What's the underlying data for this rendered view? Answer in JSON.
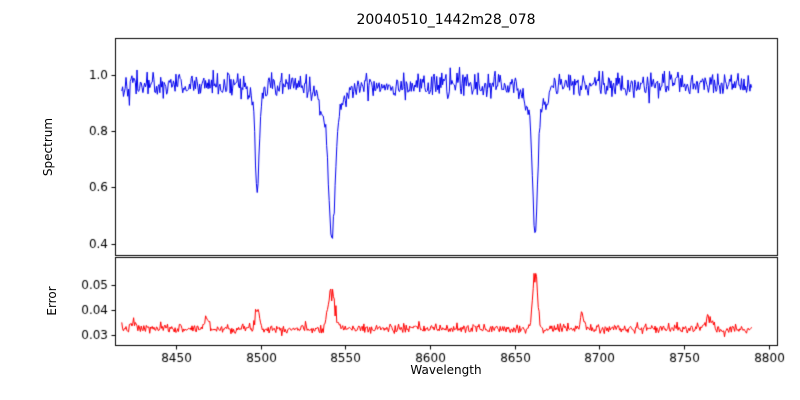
{
  "figure": {
    "background": "#ffffff"
  },
  "chart_data": [
    {
      "type": "line",
      "panel": "spectrum",
      "title": "20040510_1442m28_078",
      "xlabel": "Wavelength",
      "ylabel": "Spectrum",
      "color": "#0000ee",
      "xlim": [
        8414,
        8805
      ],
      "ylim": [
        0.36,
        1.13
      ],
      "yticks": {
        "values": [
          0.4,
          0.6,
          0.8,
          1.0
        ],
        "labels": [
          "0.4",
          "0.6",
          "0.8",
          "1.0"
        ]
      },
      "x_sampling": {
        "start": 8418,
        "end": 8790,
        "step": 0.5
      },
      "synthesis": {
        "seed": 42,
        "baseline": 0.963,
        "noise_sigma": 0.022,
        "absorption_lines": [
          {
            "center": 8498.0,
            "core_depth": 0.33,
            "core_sigma": 1.1,
            "wing_depth": 0.06,
            "wing_sigma": 3.5
          },
          {
            "center": 8542.1,
            "core_depth": 0.42,
            "core_sigma": 1.7,
            "wing_depth": 0.13,
            "wing_sigma": 6.0
          },
          {
            "center": 8662.1,
            "core_depth": 0.4,
            "core_sigma": 1.4,
            "wing_depth": 0.12,
            "wing_sigma": 5.0
          }
        ]
      },
      "features": {
        "continuum_level": 0.96,
        "line_minima": [
          {
            "wavelength": 8498,
            "flux": 0.58
          },
          {
            "wavelength": 8542,
            "flux": 0.41
          },
          {
            "wavelength": 8662,
            "flux": 0.43
          }
        ]
      },
      "legend": "off",
      "grid": "off"
    },
    {
      "type": "line",
      "panel": "error",
      "xlabel": "Wavelength",
      "ylabel": "Error",
      "color": "#ff0000",
      "xlim": [
        8414,
        8805
      ],
      "ylim": [
        0.026,
        0.061
      ],
      "yticks": {
        "values": [
          0.03,
          0.04,
          0.05
        ],
        "labels": [
          "0.03",
          "0.04",
          "0.05"
        ]
      },
      "xticks": {
        "values": [
          8450,
          8500,
          8550,
          8600,
          8650,
          8700,
          8750,
          8800
        ],
        "labels": [
          "8450",
          "8500",
          "8550",
          "8600",
          "8650",
          "8700",
          "8750",
          "8800"
        ]
      },
      "x_sampling": {
        "start": 8418,
        "end": 8790,
        "step": 0.5
      },
      "synthesis": {
        "seed": 7,
        "baseline": 0.0325,
        "noise_sigma": 0.0009,
        "peaks": [
          {
            "center": 8425,
            "amplitude": 0.0022,
            "sigma": 1.2
          },
          {
            "center": 8468,
            "amplitude": 0.0045,
            "sigma": 1.2
          },
          {
            "center": 8498,
            "amplitude": 0.0075,
            "sigma": 1.4
          },
          {
            "center": 8542,
            "amplitude": 0.016,
            "sigma": 2.0
          },
          {
            "center": 8662,
            "amplitude": 0.0245,
            "sigma": 1.3
          },
          {
            "center": 8690,
            "amplitude": 0.006,
            "sigma": 1.0
          },
          {
            "center": 8765,
            "amplitude": 0.0045,
            "sigma": 1.6
          }
        ]
      },
      "features": {
        "baseline_level": 0.033,
        "peak_maxima": [
          {
            "wavelength": 8542,
            "error": 0.049
          },
          {
            "wavelength": 8662,
            "error": 0.057
          }
        ]
      },
      "legend": "off",
      "grid": "off"
    }
  ]
}
